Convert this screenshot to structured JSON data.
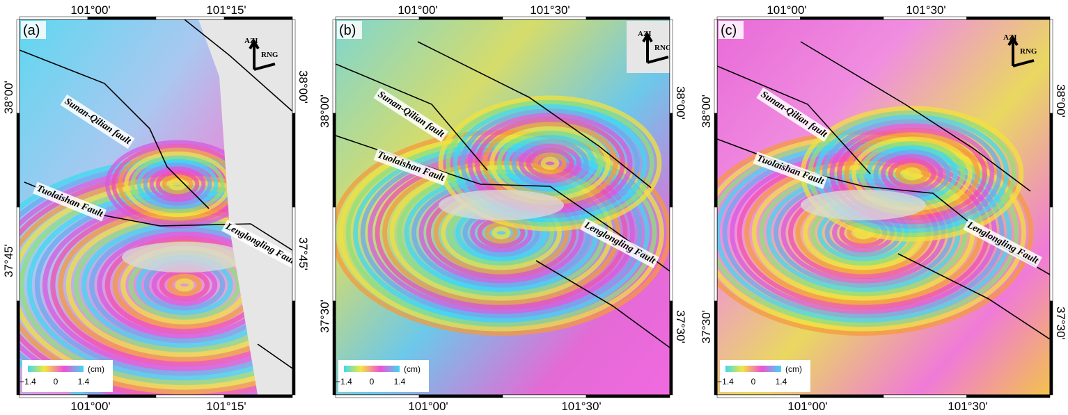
{
  "panels": [
    {
      "label": "(a)",
      "top_ticks": [
        "101°00'",
        "101°15'"
      ],
      "bottom_ticks": [
        "101°00'",
        "101°15'"
      ],
      "left_ticks": [
        "38°00'",
        "37°45'"
      ],
      "right_ticks": [
        "38°00'",
        "37°45'"
      ],
      "faults": [
        "Sunan-Qilian fault",
        "Tuolaishan Fault",
        "Lenglongling Fault"
      ],
      "direction": [
        "AZI",
        "RNG"
      ],
      "colorbar": {
        "ticks": [
          "−1.4",
          "0",
          "1.4"
        ],
        "unit": "(cm)"
      }
    },
    {
      "label": "(b)",
      "top_ticks": [
        "101°00'",
        "101°30'"
      ],
      "bottom_ticks": [
        "101°00'",
        "101°30'"
      ],
      "left_ticks": [
        "38°00'",
        "37°30'"
      ],
      "right_ticks": [
        "38°00'",
        "37°30'"
      ],
      "faults": [
        "Sunan-Qilian fault",
        "Tuolaishan Fault",
        "Lenglongling Fault"
      ],
      "direction": [
        "AZI",
        "RNG"
      ],
      "colorbar": {
        "ticks": [
          "−1.4",
          "0",
          "1.4"
        ],
        "unit": "(cm)"
      }
    },
    {
      "label": "(c)",
      "top_ticks": [
        "101°00'",
        "101°30'"
      ],
      "bottom_ticks": [
        "101°00'",
        "101°30'"
      ],
      "left_ticks": [
        "38°00'",
        "37°30'"
      ],
      "right_ticks": [
        "38°00'",
        "37°30'"
      ],
      "faults": [
        "Sunan-Qilian fault",
        "Tuolaishan Fault",
        "Lenglongling Fault"
      ],
      "direction": [
        "AZI",
        "RNG"
      ],
      "colorbar": {
        "ticks": [
          "−1.4",
          "0",
          "1.4"
        ],
        "unit": "(cm)"
      }
    }
  ]
}
